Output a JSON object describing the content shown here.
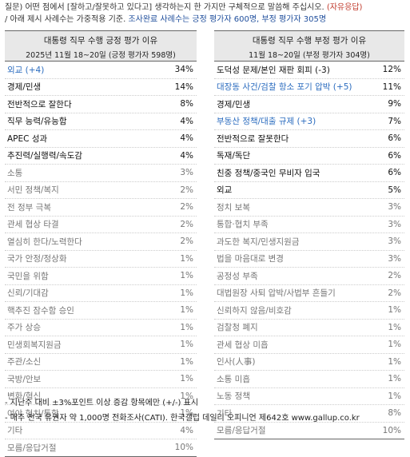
{
  "header": {
    "line1_prefix": "질문) 어떤 점에서 [잘하고/잘못하고 있다고] 생각하는지 한 가지만 구체적으로 말씀해 주십시오.",
    "line1_suffix": "(자유응답)",
    "line2_prefix": "/ 아래 제시 사례수는 가중적용 기준.",
    "line2_highlight": "조사완료 사례수는 긍정 평가자 600명, 부정 평가자 305명"
  },
  "left_table": {
    "title": "대통령 직무 수행 긍정 평가 이유",
    "subtitle": "2025년 11월 18~20일 (긍정 평가자 598명)",
    "rows": [
      {
        "label": "외교 (+4)",
        "value": "34%",
        "style": "blue"
      },
      {
        "label": "경제/민생",
        "value": "14%",
        "style": "bold"
      },
      {
        "label": "전반적으로 잘한다",
        "value": "8%",
        "style": "bold"
      },
      {
        "label": "직무 능력/유능함",
        "value": "4%",
        "style": "bold"
      },
      {
        "label": "APEC 성과",
        "value": "4%",
        "style": "bold"
      },
      {
        "label": "추진력/실행력/속도감",
        "value": "4%",
        "style": "bold"
      },
      {
        "label": "소통",
        "value": "3%",
        "style": "dim"
      },
      {
        "label": "서민 정책/복지",
        "value": "2%",
        "style": "dim"
      },
      {
        "label": "전 정부 극복",
        "value": "2%",
        "style": "dim"
      },
      {
        "label": "관세 협상 타결",
        "value": "2%",
        "style": "dim"
      },
      {
        "label": "열심히 한다/노력한다",
        "value": "2%",
        "style": "dim"
      },
      {
        "label": "국가 안정/정상화",
        "value": "1%",
        "style": "dim"
      },
      {
        "label": "국민을 위함",
        "value": "1%",
        "style": "dim"
      },
      {
        "label": "신뢰/기대감",
        "value": "1%",
        "style": "dim"
      },
      {
        "label": "핵추진 잠수함 승인",
        "value": "1%",
        "style": "dim"
      },
      {
        "label": "주가 상승",
        "value": "1%",
        "style": "dim"
      },
      {
        "label": "민생회복지원금",
        "value": "1%",
        "style": "dim"
      },
      {
        "label": "주관/소신",
        "value": "1%",
        "style": "dim"
      },
      {
        "label": "국방/안보",
        "value": "1%",
        "style": "dim"
      },
      {
        "label": "변화/혁신",
        "value": "1%",
        "style": "dim"
      },
      {
        "label": "여야 협치/통합",
        "value": "1%",
        "style": "dim"
      },
      {
        "label": "기타",
        "value": "4%",
        "style": "dim"
      },
      {
        "label": "모름/응답거절",
        "value": "10%",
        "style": "dim"
      }
    ]
  },
  "right_table": {
    "title": "대통령 직무 수행 부정 평가 이유",
    "subtitle": "11월 18~20일 (부정 평가자 304명)",
    "rows": [
      {
        "label": "도덕성 문제/본인 재판 회피 (-3)",
        "value": "12%",
        "style": "bold"
      },
      {
        "label": "대장동 사건/검찰 항소 포기 압박 (+5)",
        "value": "11%",
        "style": "blue"
      },
      {
        "label": "경제/민생",
        "value": "9%",
        "style": "bold"
      },
      {
        "label": "부동산 정책/대출 규제 (+3)",
        "value": "7%",
        "style": "blue"
      },
      {
        "label": "전반적으로 잘못한다",
        "value": "6%",
        "style": "bold"
      },
      {
        "label": "독재/독단",
        "value": "6%",
        "style": "bold"
      },
      {
        "label": "친중 정책/중국인 무비자 입국",
        "value": "6%",
        "style": "bold"
      },
      {
        "label": "외교",
        "value": "5%",
        "style": "bold"
      },
      {
        "label": "정치 보복",
        "value": "3%",
        "style": "dim"
      },
      {
        "label": "통합·협치 부족",
        "value": "3%",
        "style": "dim"
      },
      {
        "label": "과도한 복지/민생지원금",
        "value": "3%",
        "style": "dim"
      },
      {
        "label": "법을 마음대로 변경",
        "value": "3%",
        "style": "dim"
      },
      {
        "label": "공정성 부족",
        "value": "2%",
        "style": "dim"
      },
      {
        "label": "대법원장 사퇴 압박/사법부 흔들기",
        "value": "2%",
        "style": "dim"
      },
      {
        "label": "신뢰하지 않음/비호감",
        "value": "1%",
        "style": "dim"
      },
      {
        "label": "검찰청 폐지",
        "value": "1%",
        "style": "dim"
      },
      {
        "label": "관세 협상 미흡",
        "value": "1%",
        "style": "dim"
      },
      {
        "label": "인사(人事)",
        "value": "1%",
        "style": "dim"
      },
      {
        "label": "소통 미흡",
        "value": "1%",
        "style": "dim"
      },
      {
        "label": "노동 정책",
        "value": "1%",
        "style": "dim"
      },
      {
        "label": "기타",
        "value": "8%",
        "style": "dim"
      },
      {
        "label": "모름/응답거절",
        "value": "10%",
        "style": "dim"
      }
    ]
  },
  "footer": {
    "note1": "- 지난주 대비 ±3%포인트 이상 증감 항목에만 (+/-) 표시",
    "note2": "- 매주 전국 유권자 약 1,000명 전화조사(CATI). 한국갤럽 데일리 오피니언 제642호 www.gallup.co.kr"
  }
}
